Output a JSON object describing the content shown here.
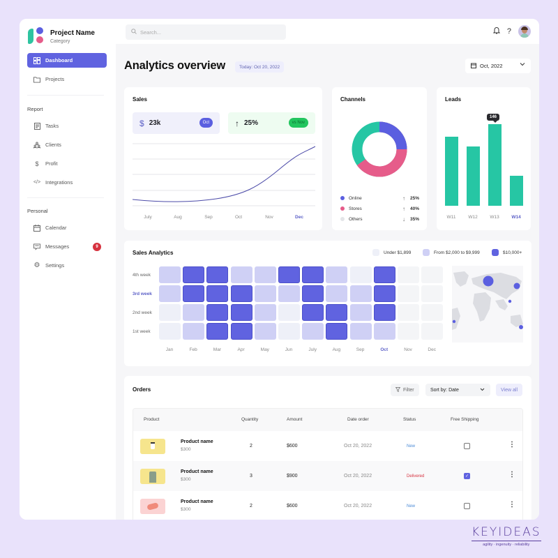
{
  "brand": {
    "name": "Project Name",
    "category": "Category"
  },
  "sidebar": {
    "items": [
      {
        "label": "Dashboard",
        "icon": "grid-icon",
        "active": true
      },
      {
        "label": "Projects",
        "icon": "folder-icon"
      }
    ],
    "report_title": "Report",
    "report_items": [
      {
        "label": "Tasks",
        "icon": "clipboard-icon"
      },
      {
        "label": "Clients",
        "icon": "users-icon"
      },
      {
        "label": "Profit",
        "icon": "dollar-icon"
      },
      {
        "label": "Integrations",
        "icon": "code-icon"
      }
    ],
    "personal_title": "Personal",
    "personal_items": [
      {
        "label": "Calendar",
        "icon": "calendar-icon"
      },
      {
        "label": "Messages",
        "icon": "message-icon",
        "badge": "9"
      },
      {
        "label": "Settings",
        "icon": "gear-icon"
      }
    ]
  },
  "topbar": {
    "search_placeholder": "Search..."
  },
  "header": {
    "title": "Analytics overview",
    "today": "Today: Oct 20, 2022",
    "month": "Oct, 2022"
  },
  "sales": {
    "title": "Sales",
    "kpi_value": "23k",
    "kpi_pill": "Oct",
    "growth_value": "25%",
    "growth_pill": "vs Nov",
    "months": [
      "July",
      "Aug",
      "Sep",
      "Oct",
      "Nov",
      "Dec"
    ],
    "highlight_month": "Dec"
  },
  "channels": {
    "title": "Channels",
    "items": [
      {
        "label": "Online",
        "value": "25%",
        "trend": "up",
        "color": "#5b5fe0"
      },
      {
        "label": "Stores",
        "value": "40%",
        "trend": "up",
        "color": "#e65c8a"
      },
      {
        "label": "Others",
        "value": "35%",
        "trend": "down",
        "color": "#e4e5e8"
      }
    ]
  },
  "leads": {
    "title": "Leads",
    "weeks": [
      "W11",
      "W12",
      "W13",
      "W14"
    ],
    "highlight_week": "W14",
    "tooltip": "146"
  },
  "sales_analytics": {
    "title": "Sales Analytics",
    "legend": [
      {
        "label": "Under $1,899",
        "color": "#eef0f8"
      },
      {
        "label": "From $2,000 to $9,999",
        "color": "#cfd0f5"
      },
      {
        "label": "$10,000+",
        "color": "#6063e0"
      }
    ],
    "rows": [
      "4th week",
      "3rd week",
      "2nd week",
      "1st week"
    ],
    "highlight_row": "3rd week",
    "months": [
      "Jan",
      "Feb",
      "Mar",
      "Apr",
      "May",
      "Jun",
      "July",
      "Aug",
      "Sep",
      "Oct",
      "Nov",
      "Dec"
    ],
    "highlight_month": "Oct"
  },
  "orders": {
    "title": "Orders",
    "filter_label": "Filter",
    "sort_label": "Sort by: Date",
    "view_all_label": "View all",
    "columns": [
      "Product",
      "Quantity",
      "Amount",
      "Date order",
      "Status",
      "Free Shipping"
    ],
    "rows": [
      {
        "name": "Product name",
        "price": "$300",
        "quantity": "2",
        "amount": "$600",
        "date": "Oct 20, 2022",
        "status": "New",
        "free_shipping": false,
        "thumb": "#f6e58d"
      },
      {
        "name": "Product name",
        "price": "$300",
        "quantity": "3",
        "amount": "$900",
        "date": "Oct 20, 2022",
        "status": "Delivered",
        "free_shipping": true,
        "thumb": "#f6e58d"
      },
      {
        "name": "Product name",
        "price": "$300",
        "quantity": "2",
        "amount": "$600",
        "date": "Oct 20, 2022",
        "status": "New",
        "free_shipping": false,
        "thumb": "#fbd3d3"
      }
    ]
  },
  "watermark": {
    "name": "KEYIDEAS",
    "tagline": "agility  ·  ingenuity  ·  reliability"
  },
  "chart_data": [
    {
      "type": "line",
      "title": "Sales",
      "categories": [
        "July",
        "Aug",
        "Sep",
        "Oct",
        "Nov",
        "Dec"
      ],
      "values": [
        6,
        5,
        6,
        12,
        25,
        40
      ],
      "grid": true
    },
    {
      "type": "pie",
      "title": "Channels",
      "categories": [
        "Online",
        "Stores",
        "Others"
      ],
      "values": [
        25,
        40,
        35
      ],
      "legend_position": "bottom"
    },
    {
      "type": "bar",
      "title": "Leads",
      "categories": [
        "W11",
        "W12",
        "W13",
        "W14"
      ],
      "values": [
        125,
        105,
        146,
        55
      ],
      "annotations": [
        {
          "x": "W13",
          "label": "146"
        }
      ]
    },
    {
      "type": "heatmap",
      "title": "Sales Analytics",
      "x": [
        "Jan",
        "Feb",
        "Mar",
        "Apr",
        "May",
        "Jun",
        "July",
        "Aug",
        "Sep",
        "Oct",
        "Nov",
        "Dec"
      ],
      "y": [
        "4th week",
        "3rd week",
        "2nd week",
        "1st week"
      ],
      "levels_legend": [
        "Under $1,899",
        "From $2,000 to $9,999",
        "$10,000+"
      ],
      "values": [
        [
          1,
          2,
          2,
          1,
          1,
          2,
          2,
          1,
          0,
          2,
          null,
          null
        ],
        [
          1,
          2,
          2,
          2,
          1,
          1,
          2,
          1,
          1,
          2,
          null,
          null
        ],
        [
          0,
          1,
          2,
          2,
          1,
          0,
          2,
          2,
          1,
          2,
          null,
          null
        ],
        [
          0,
          1,
          2,
          2,
          1,
          0,
          1,
          2,
          1,
          1,
          null,
          null
        ]
      ]
    }
  ]
}
